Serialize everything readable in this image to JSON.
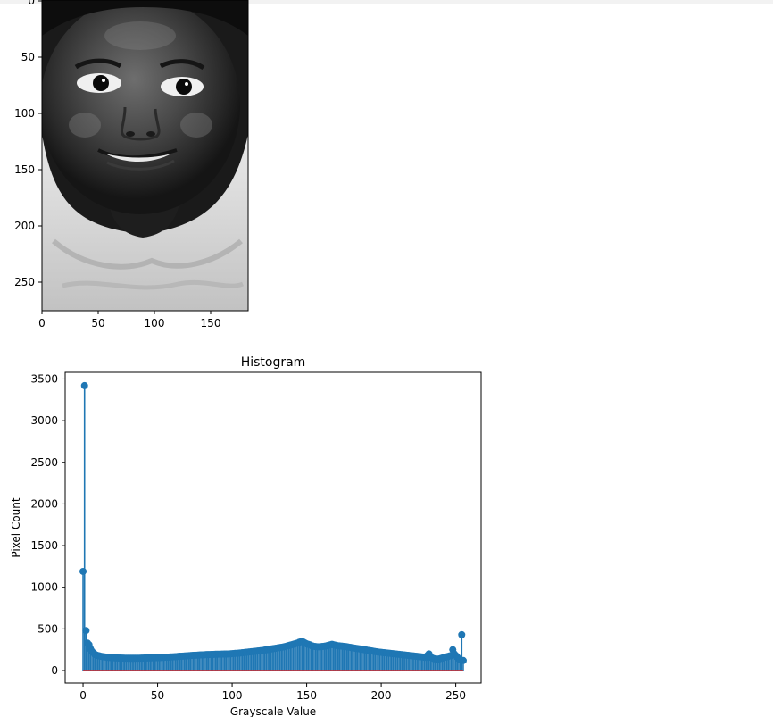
{
  "image_panel": {
    "x_ticks": [
      "0",
      "50",
      "100",
      "150"
    ],
    "y_ticks": [
      "0",
      "50",
      "100",
      "150",
      "200",
      "250"
    ]
  },
  "chart_data": {
    "type": "stem",
    "title": "Histogram",
    "xlabel": "Grayscale Value",
    "ylabel": "Pixel Count",
    "xlim": [
      -12,
      267
    ],
    "ylim": [
      -150,
      3580
    ],
    "x_ticks": [
      "0",
      "50",
      "100",
      "150",
      "200",
      "250"
    ],
    "y_ticks": [
      "0",
      "500",
      "1000",
      "1500",
      "2000",
      "2500",
      "3000",
      "3500"
    ],
    "marker_color": "#1f77b4",
    "baseline_color": "#d62728",
    "series": [
      {
        "values": [
          1190,
          3420,
          480,
          330,
          310,
          260,
          230,
          210,
          195,
          185,
          180,
          175,
          170,
          168,
          165,
          162,
          160,
          158,
          156,
          155,
          154,
          153,
          152,
          151,
          150,
          150,
          149,
          149,
          148,
          148,
          148,
          147,
          147,
          147,
          147,
          147,
          148,
          148,
          148,
          149,
          149,
          150,
          150,
          151,
          151,
          152,
          152,
          153,
          153,
          154,
          154,
          155,
          156,
          157,
          158,
          159,
          160,
          161,
          162,
          163,
          164,
          165,
          166,
          168,
          170,
          171,
          172,
          173,
          174,
          175,
          176,
          178,
          180,
          181,
          182,
          183,
          184,
          185,
          186,
          187,
          188,
          189,
          190,
          191,
          191,
          192,
          193,
          193,
          194,
          195,
          195,
          196,
          196,
          197,
          197,
          198,
          198,
          199,
          200,
          201,
          202,
          204,
          206,
          207,
          208,
          210,
          212,
          214,
          216,
          218,
          220,
          222,
          224,
          226,
          228,
          230,
          232,
          234,
          236,
          238,
          240,
          243,
          246,
          249,
          252,
          255,
          258,
          261,
          264,
          267,
          270,
          273,
          276,
          279,
          282,
          286,
          290,
          295,
          300,
          305,
          310,
          315,
          320,
          325,
          330,
          340,
          345,
          348,
          340,
          330,
          320,
          315,
          310,
          300,
          295,
          290,
          288,
          286,
          285,
          286,
          288,
          290,
          292,
          295,
          300,
          305,
          310,
          315,
          310,
          305,
          300,
          298,
          296,
          294,
          292,
          290,
          288,
          285,
          282,
          279,
          276,
          273,
          270,
          267,
          264,
          261,
          258,
          255,
          252,
          249,
          246,
          243,
          240,
          237,
          234,
          231,
          228,
          225,
          222,
          220,
          218,
          216,
          214,
          212,
          210,
          208,
          206,
          204,
          202,
          200,
          198,
          196,
          194,
          192,
          190,
          188,
          186,
          184,
          182,
          180,
          178,
          176,
          174,
          172,
          170,
          168,
          166,
          164,
          162,
          160,
          158,
          180,
          200,
          170,
          150,
          145,
          140,
          138,
          136,
          140,
          145,
          150,
          155,
          160,
          165,
          170,
          175,
          180,
          250,
          200,
          180,
          160,
          140,
          130,
          430,
          120
        ]
      }
    ]
  }
}
